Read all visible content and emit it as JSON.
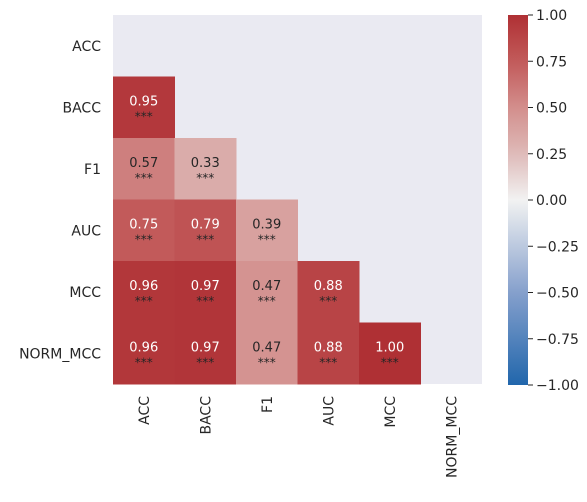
{
  "chart_data": {
    "type": "heatmap",
    "title": "",
    "xlabel": "",
    "ylabel": "",
    "x_categories": [
      "ACC",
      "BACC",
      "F1",
      "AUC",
      "MCC",
      "NORM_MCC"
    ],
    "y_categories": [
      "ACC",
      "BACC",
      "F1",
      "AUC",
      "MCC",
      "NORM_MCC"
    ],
    "mask": "upper triangle including diagonal",
    "values": [
      [
        null,
        null,
        null,
        null,
        null,
        null
      ],
      [
        0.95,
        null,
        null,
        null,
        null,
        null
      ],
      [
        0.57,
        0.33,
        null,
        null,
        null,
        null
      ],
      [
        0.75,
        0.79,
        0.39,
        null,
        null,
        null
      ],
      [
        0.96,
        0.97,
        0.47,
        0.88,
        null,
        null
      ],
      [
        0.96,
        0.97,
        0.47,
        0.88,
        1.0,
        null
      ]
    ],
    "value_labels": [
      [
        null,
        null,
        null,
        null,
        null,
        null
      ],
      [
        "0.95",
        null,
        null,
        null,
        null,
        null
      ],
      [
        "0.57",
        "0.33",
        null,
        null,
        null,
        null
      ],
      [
        "0.75",
        "0.79",
        "0.39",
        null,
        null,
        null
      ],
      [
        "0.96",
        "0.97",
        "0.47",
        "0.88",
        null,
        null
      ],
      [
        "0.96",
        "0.97",
        "0.47",
        "0.88",
        "1.00",
        null
      ]
    ],
    "significance": [
      [
        null,
        null,
        null,
        null,
        null,
        null
      ],
      [
        "***",
        null,
        null,
        null,
        null,
        null
      ],
      [
        "***",
        "***",
        null,
        null,
        null,
        null
      ],
      [
        "***",
        "***",
        "***",
        null,
        null,
        null
      ],
      [
        "***",
        "***",
        "***",
        "***",
        null,
        null
      ],
      [
        "***",
        "***",
        "***",
        "***",
        "***",
        null
      ]
    ],
    "colormap": "vlag",
    "vmin": -1.0,
    "vmax": 1.0,
    "colorbar": {
      "ticks": [
        1.0,
        0.75,
        0.5,
        0.25,
        0.0,
        -0.25,
        -0.5,
        -0.75,
        -1.0
      ],
      "tick_labels": [
        "1.00",
        "0.75",
        "0.50",
        "0.25",
        "0.00",
        "−0.25",
        "−0.50",
        "−0.75",
        "−1.00"
      ]
    },
    "background_color": "#eaeaf2",
    "grid": false,
    "legend": "colorbar right"
  }
}
